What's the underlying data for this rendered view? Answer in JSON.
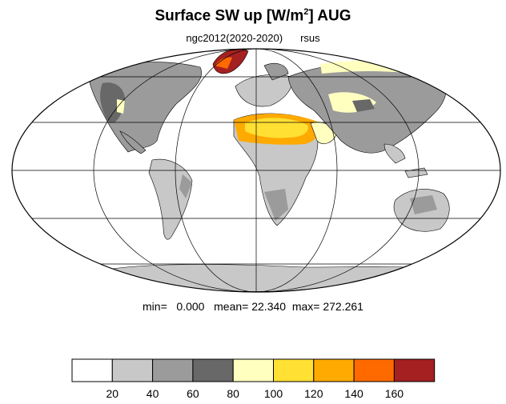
{
  "title": {
    "prefix": "Surface SW up [W/m",
    "sup": "2",
    "suffix": "]  AUG"
  },
  "subtitle": {
    "left": "ngc2012(2020-2020)",
    "right": "rsus"
  },
  "stats": {
    "min_label": "min=",
    "min": "0.000",
    "mean_label": "mean=",
    "mean": "22.340",
    "max_label": "max=",
    "max": "272.261"
  },
  "colorbar": {
    "levels": [
      "20",
      "40",
      "60",
      "80",
      "100",
      "120",
      "140",
      "160"
    ],
    "colors": [
      "#ffffff",
      "#c8c8c8",
      "#9b9b9b",
      "#686868",
      "#ffffc0",
      "#ffe033",
      "#ffaa00",
      "#ff6a00",
      "#a52020"
    ]
  },
  "map": {
    "projection": "Mollweide",
    "grid": true
  }
}
